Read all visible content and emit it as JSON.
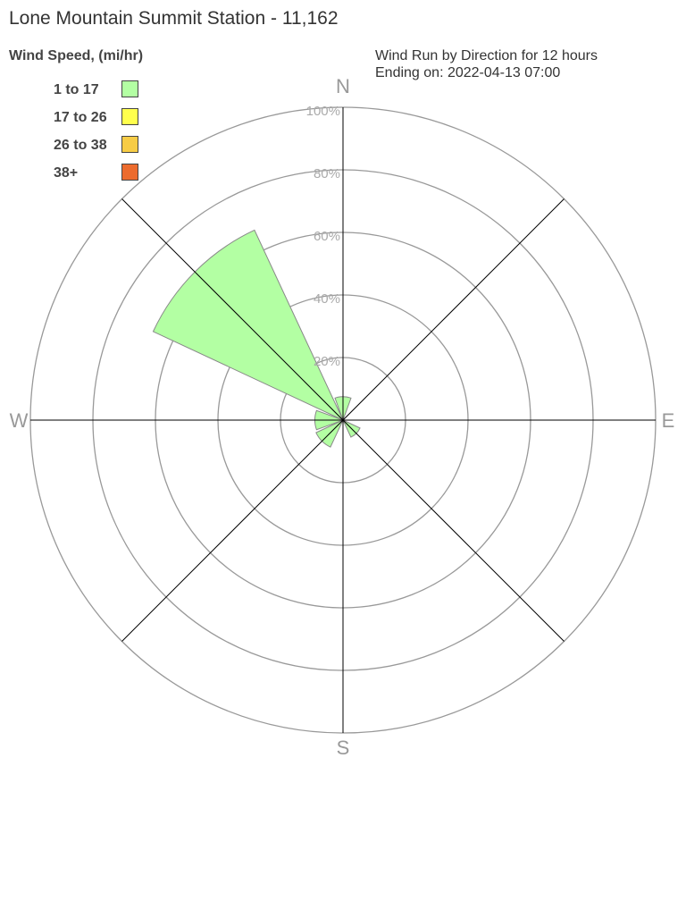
{
  "chart_data": {
    "type": "wind-rose",
    "title": "Lone Mountain Summit Station - 11,162",
    "legend_title": "Wind Speed, (mi/hr)",
    "legend_placement": "top-left",
    "subtitle_lines": [
      "Wind Run by Direction for 12 hours",
      "Ending on: 2022-04-13 07:00"
    ],
    "compass_labels": {
      "n": "N",
      "e": "E",
      "s": "S",
      "w": "W"
    },
    "radial_ticks": [
      "20%",
      "40%",
      "60%",
      "80%",
      "100%"
    ],
    "radial_max": 100,
    "legend": [
      {
        "label": "1 to 17",
        "color": "#b3ffa3"
      },
      {
        "label": "17 to 26",
        "color": "#ffff4d"
      },
      {
        "label": "26 to 38",
        "color": "#f7cc46"
      },
      {
        "label": "38+",
        "color": "#ec6b2d"
      }
    ],
    "directions": [
      "N",
      "NE",
      "E",
      "SE",
      "S",
      "SW",
      "W",
      "NW"
    ],
    "series": [
      {
        "name": "1 to 17",
        "values": [
          7.5,
          0,
          0,
          6,
          0,
          9.5,
          9,
          67
        ]
      }
    ]
  }
}
